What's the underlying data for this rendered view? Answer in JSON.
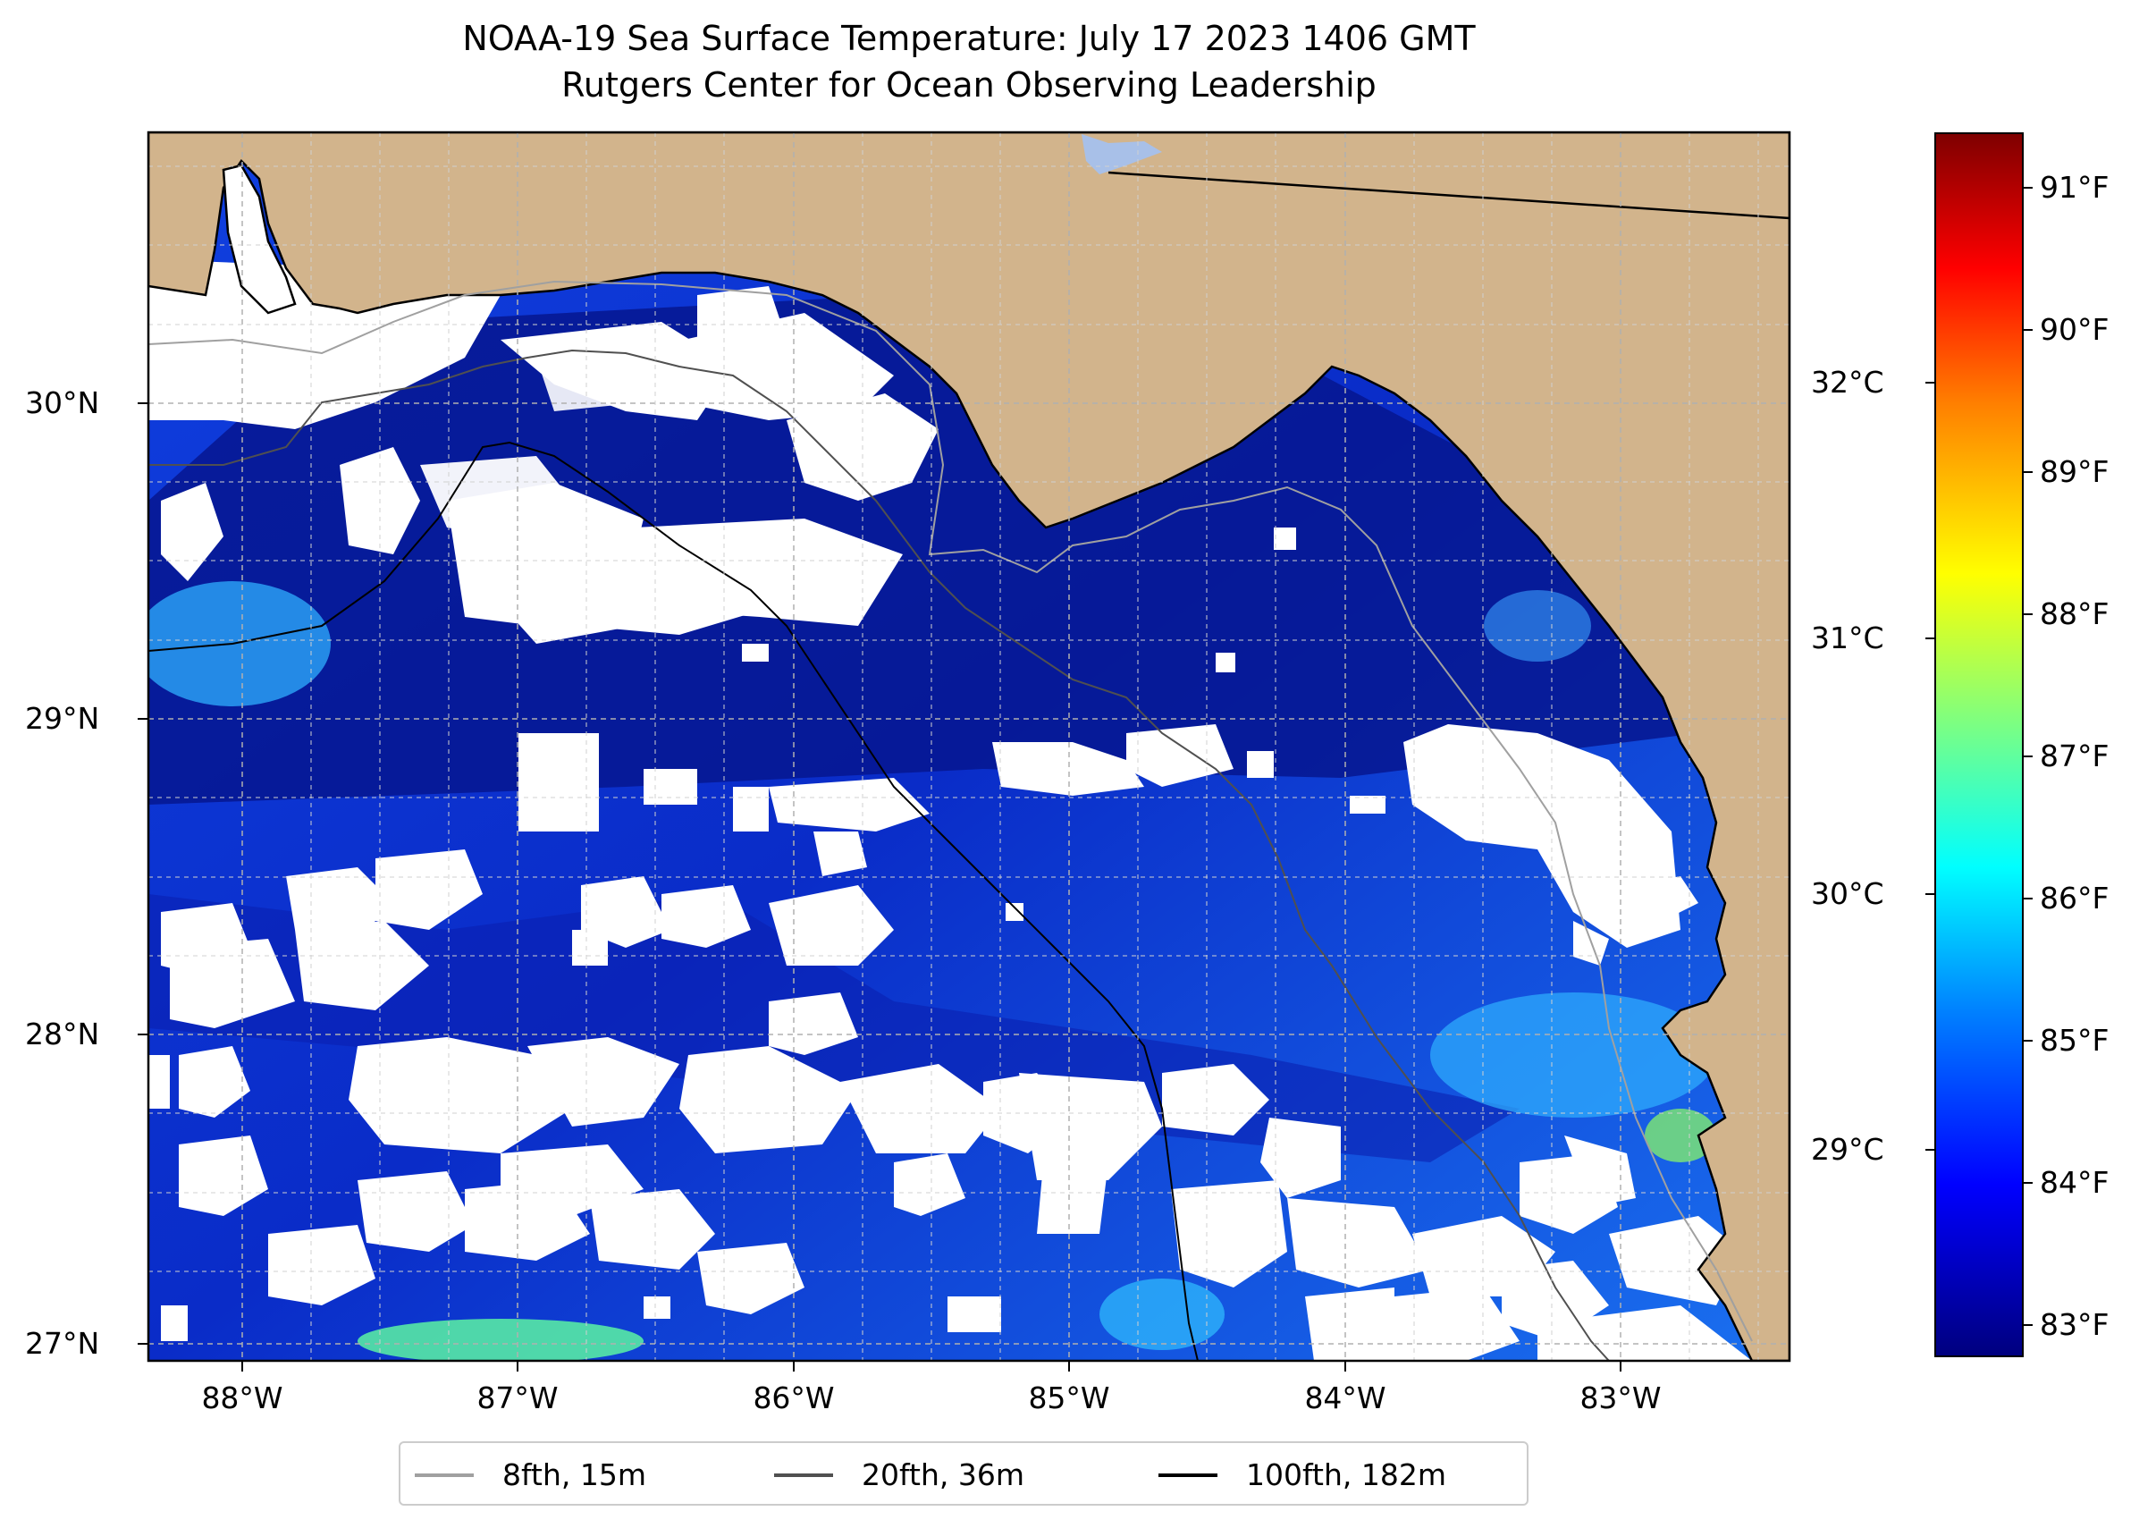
{
  "title": {
    "line1": "NOAA-19 Sea Surface Temperature: July 17 2023 1406 GMT",
    "line2": "Rutgers Center for Ocean Observing Leadership"
  },
  "axes": {
    "lat_labels": [
      "30°N",
      "29°N",
      "28°N",
      "27°N"
    ],
    "lon_labels": [
      "88°W",
      "87°W",
      "86°W",
      "85°W",
      "84°W",
      "83°W"
    ]
  },
  "colorbar": {
    "colormap": "jet",
    "fahrenheit_ticks": [
      "91°F",
      "90°F",
      "89°F",
      "88°F",
      "87°F",
      "86°F",
      "85°F",
      "84°F",
      "83°F"
    ],
    "celsius_ticks": [
      "32°C",
      "31°C",
      "30°C",
      "29°C"
    ]
  },
  "legend": {
    "items": [
      {
        "label": "8fth, 15m",
        "color": "#a0a0a0"
      },
      {
        "label": "20fth, 36m",
        "color": "#505050"
      },
      {
        "label": "100fth, 182m",
        "color": "#000000"
      }
    ]
  },
  "colors": {
    "land": "#d2b48c",
    "no_data": "#ffffff",
    "coastline": "#000000",
    "grid": "#b0b0b0"
  }
}
